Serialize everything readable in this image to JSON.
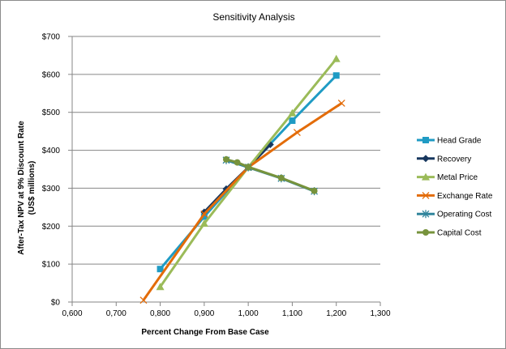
{
  "chart_data": {
    "type": "line",
    "title": "Sensitivity Analysis",
    "xlabel": "Percent Change  From Base Case",
    "ylabel_line1": "After-Tax NPV at 9% Discount Rate",
    "ylabel_line2": "(US$ millions)",
    "xlim": [
      0.6,
      1.3
    ],
    "ylim": [
      0,
      700
    ],
    "x_ticks": [
      0.6,
      0.7,
      0.8,
      0.9,
      1.0,
      1.1,
      1.2,
      1.3
    ],
    "x_tick_labels": [
      "0,600",
      "0,700",
      "0,800",
      "0,900",
      "1,000",
      "1,100",
      "1,200",
      "1,300"
    ],
    "y_ticks": [
      0,
      100,
      200,
      300,
      400,
      500,
      600,
      700
    ],
    "y_tick_labels": [
      "$0",
      "$100",
      "$200",
      "$300",
      "$400",
      "$500",
      "$600",
      "$700"
    ],
    "grid": "horizontal",
    "legend_position": "right",
    "series": [
      {
        "name": "Head Grade",
        "color": "#1f9bc4",
        "marker": "square",
        "x": [
          0.8,
          0.9,
          1.0,
          1.1,
          1.2
        ],
        "y": [
          87,
          225,
          355,
          478,
          597
        ]
      },
      {
        "name": "Recovery",
        "color": "#17375e",
        "marker": "diamond",
        "x": [
          0.9,
          0.95,
          1.0,
          1.05
        ],
        "y": [
          237,
          298,
          355,
          415
        ]
      },
      {
        "name": "Metal Price",
        "color": "#9bbb59",
        "marker": "triangle",
        "x": [
          0.8,
          0.9,
          1.0,
          1.1,
          1.2
        ],
        "y": [
          40,
          207,
          355,
          498,
          641
        ]
      },
      {
        "name": "Exchange Rate",
        "color": "#e36c09",
        "marker": "x",
        "x": [
          0.762,
          0.9,
          1.0,
          1.111,
          1.212
        ],
        "y": [
          5,
          232,
          355,
          447,
          524
        ]
      },
      {
        "name": "Operating Cost",
        "color": "#31859c",
        "marker": "star",
        "x": [
          0.95,
          1.0,
          1.075,
          1.15
        ],
        "y": [
          374,
          355,
          326,
          292
        ]
      },
      {
        "name": "Capital Cost",
        "color": "#77933c",
        "marker": "circle",
        "x": [
          0.95,
          0.975,
          1.0,
          1.075,
          1.15
        ],
        "y": [
          376,
          368,
          356,
          327,
          293
        ]
      }
    ]
  }
}
